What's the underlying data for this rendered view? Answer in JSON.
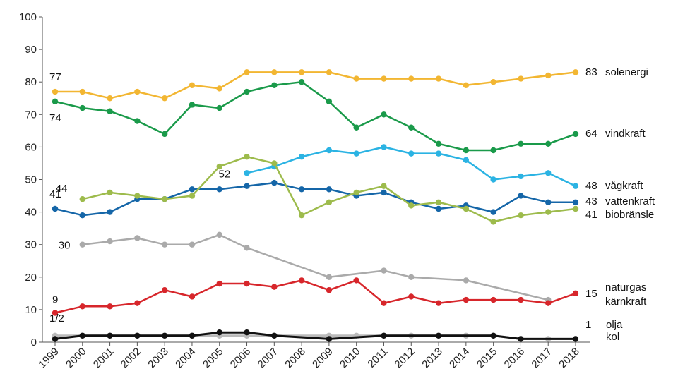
{
  "chart_data": {
    "type": "line",
    "title": "",
    "xlabel": "",
    "ylabel": "",
    "ylim": [
      0,
      100
    ],
    "yticks": [
      "0",
      "10",
      "20",
      "30",
      "40",
      "50",
      "60",
      "70",
      "80",
      "90",
      "100"
    ],
    "categories": [
      "1999",
      "2000",
      "2001",
      "2002",
      "2003",
      "2004",
      "2005",
      "2006",
      "2007",
      "2008",
      "2009",
      "2010",
      "2011",
      "2012",
      "2013",
      "2014",
      "2015",
      "2016",
      "2017",
      "2018"
    ],
    "series": [
      {
        "name": "solenergi",
        "color": "#F2B632",
        "end_label": "83",
        "start_label": "77",
        "values": [
          77,
          77,
          75,
          77,
          75,
          79,
          78,
          83,
          83,
          83,
          83,
          81,
          81,
          81,
          81,
          79,
          80,
          81,
          82,
          83
        ]
      },
      {
        "name": "vindkraft",
        "color": "#1A9A4A",
        "end_label": "64",
        "start_label": "74",
        "values": [
          74,
          72,
          71,
          68,
          64,
          73,
          72,
          77,
          79,
          80,
          74,
          66,
          70,
          66,
          61,
          59,
          59,
          61,
          61,
          64
        ]
      },
      {
        "name": "vågkraft",
        "color": "#2BB3E3",
        "end_label": "48",
        "start_label": "52",
        "values": [
          null,
          null,
          null,
          null,
          null,
          null,
          null,
          52,
          54,
          57,
          59,
          58,
          60,
          58,
          58,
          56,
          50,
          51,
          52,
          48
        ]
      },
      {
        "name": "vattenkraft",
        "color": "#1566A8",
        "end_label": "43",
        "start_label": "41",
        "values": [
          41,
          39,
          40,
          44,
          44,
          47,
          47,
          48,
          49,
          47,
          47,
          45,
          46,
          43,
          41,
          42,
          40,
          45,
          43,
          43
        ]
      },
      {
        "name": "biobränsle",
        "color": "#9DBB4C",
        "end_label": "41",
        "start_label": "44",
        "values": [
          null,
          44,
          46,
          45,
          44,
          45,
          54,
          57,
          55,
          39,
          43,
          46,
          48,
          42,
          43,
          41,
          37,
          39,
          40,
          41
        ]
      },
      {
        "name": "naturgas",
        "color": "#AAAAAA",
        "end_label": "",
        "start_label": "30",
        "values": [
          null,
          30,
          31,
          32,
          30,
          30,
          33,
          29,
          null,
          null,
          20,
          null,
          22,
          20,
          null,
          19,
          null,
          null,
          13,
          null
        ]
      },
      {
        "name": "kärnkraft",
        "color": "#D7262B",
        "end_label": "15",
        "start_label": "9",
        "values": [
          9,
          11,
          11,
          12,
          16,
          14,
          18,
          18,
          17,
          19,
          16,
          19,
          12,
          14,
          12,
          13,
          13,
          13,
          12,
          15
        ]
      },
      {
        "name": "olja",
        "color": "#BBBBBB",
        "end_label": "1",
        "start_label": "",
        "values": [
          2,
          2,
          2,
          2,
          2,
          2,
          2,
          2,
          2,
          null,
          2,
          2,
          2,
          2,
          2,
          2,
          2,
          1,
          1,
          1
        ]
      },
      {
        "name": "kol",
        "color": "#111111",
        "end_label": "",
        "start_label": "",
        "values": [
          1,
          2,
          2,
          2,
          2,
          2,
          3,
          3,
          2,
          null,
          1,
          null,
          2,
          null,
          2,
          null,
          2,
          1,
          null,
          1
        ]
      }
    ],
    "annotations": {
      "start_olja_kol": "1/2"
    },
    "legend": "right-end-labels",
    "grid": false
  }
}
